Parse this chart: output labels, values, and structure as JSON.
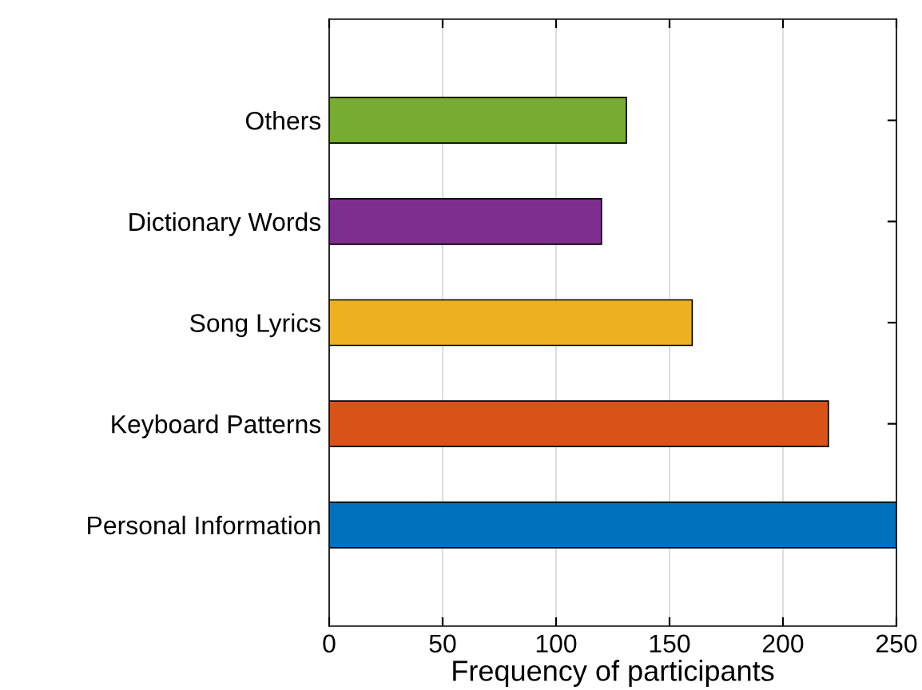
{
  "chart_data": {
    "type": "bar",
    "orientation": "horizontal",
    "xlabel": "Frequency of participants",
    "categories": [
      "Others",
      "Dictionary Words",
      "Song Lyrics",
      "Keyboard Patterns",
      "Personal Information"
    ],
    "values": [
      131,
      120,
      160,
      220,
      250
    ],
    "colors": [
      "#77ac30",
      "#7e2f8e",
      "#edb120",
      "#d95319",
      "#0072bd"
    ],
    "xlim": [
      0,
      250
    ],
    "xticks": [
      0,
      50,
      100,
      150,
      200,
      250
    ],
    "grid": "x"
  }
}
